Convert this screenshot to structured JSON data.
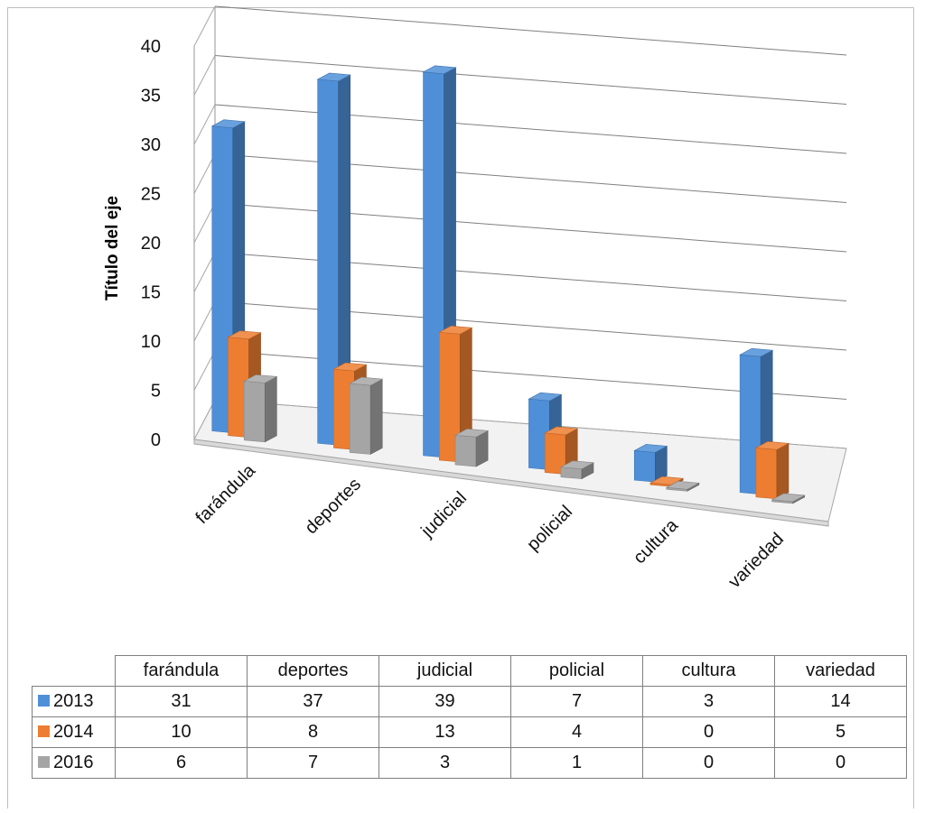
{
  "chart_data": {
    "type": "bar",
    "variant": "3d-clustered-column",
    "categories": [
      "farándula",
      "deportes",
      "judicial",
      "policial",
      "cultura",
      "variedad"
    ],
    "series": [
      {
        "name": "2013",
        "values": [
          31,
          37,
          39,
          7,
          3,
          14
        ],
        "color": "#4f8fd8"
      },
      {
        "name": "2014",
        "values": [
          10,
          8,
          13,
          4,
          0,
          5
        ],
        "color": "#ed7d31"
      },
      {
        "name": "2016",
        "values": [
          6,
          7,
          3,
          1,
          0,
          0
        ],
        "color": "#a5a5a5"
      }
    ],
    "ylabel": "Título del eje",
    "ylim": [
      0,
      40
    ],
    "yticks": [
      0,
      5,
      10,
      15,
      20,
      25,
      30,
      35,
      40
    ],
    "grid": true,
    "legend": "data-table-below"
  }
}
